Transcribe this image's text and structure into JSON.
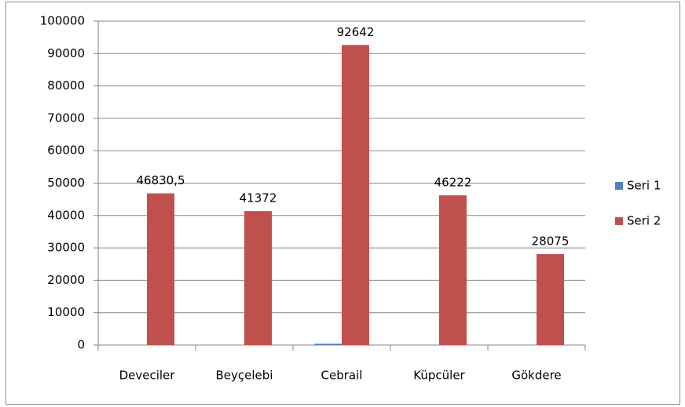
{
  "chart_data": {
    "type": "bar",
    "categories": [
      "Deveciler",
      "Beyçelebi",
      "Cebrail",
      "Küpcüler",
      "Gökdere"
    ],
    "series": [
      {
        "name": "Seri 1",
        "color": "#4f81bd",
        "values": [
          0,
          0,
          400,
          0,
          0
        ]
      },
      {
        "name": "Seri 2",
        "color": "#c0504d",
        "values": [
          46830.5,
          41372,
          92642,
          46222,
          28075
        ],
        "value_labels": [
          "46830,5",
          "41372",
          "92642",
          "46222",
          "28075"
        ]
      }
    ],
    "ylim": [
      0,
      100000
    ],
    "yticks": [
      0,
      10000,
      20000,
      30000,
      40000,
      50000,
      60000,
      70000,
      80000,
      90000,
      100000
    ],
    "grid": true,
    "legend": "right"
  }
}
